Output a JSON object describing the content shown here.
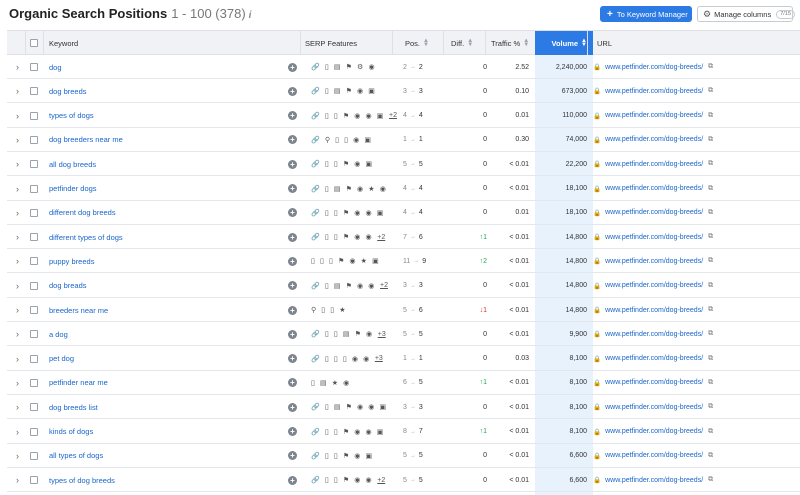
{
  "header": {
    "title": "Organic Search Positions",
    "range": "1 - 100 (378)",
    "info_icon": "i",
    "keyword_manager_label": "To Keyword Manager",
    "manage_columns_label": "Manage columns",
    "manage_columns_badge": "7/15"
  },
  "columns": {
    "keyword": "Keyword",
    "serp": "SERP Features",
    "pos": "Pos.",
    "diff": "Diff.",
    "traffic": "Traffic %",
    "volume": "Volume",
    "url": "URL"
  },
  "icons": {
    "add": "+",
    "chevron": "›",
    "arrow": "→",
    "lock": "🔒",
    "external": "⧉"
  },
  "rows": [
    {
      "keyword": "dog",
      "serp": "🔗 ▯ ▤ ⚑ ⚙ ◉",
      "more": "",
      "prev": "2",
      "pos": "2",
      "diff": "0",
      "diff_dir": "",
      "traffic": "2.52",
      "volume": "2,240,000",
      "url": "www.petfinder.com/dog-breeds/"
    },
    {
      "keyword": "dog breeds",
      "serp": "🔗 ▯ ▤ ⚑ ◉ ▣",
      "more": "",
      "prev": "3",
      "pos": "3",
      "diff": "0",
      "diff_dir": "",
      "traffic": "0.10",
      "volume": "673,000",
      "url": "www.petfinder.com/dog-breeds/"
    },
    {
      "keyword": "types of dogs",
      "serp": "🔗 ▯ ▯ ⚑ ◉ ◉ ▣",
      "more": "+2",
      "prev": "4",
      "pos": "4",
      "diff": "0",
      "diff_dir": "",
      "traffic": "0.01",
      "volume": "110,000",
      "url": "www.petfinder.com/dog-breeds/"
    },
    {
      "keyword": "dog breeders near me",
      "serp": "🔗 ⚲ ▯ ▯ ◉ ▣",
      "more": "",
      "prev": "1",
      "pos": "1",
      "diff": "0",
      "diff_dir": "",
      "traffic": "0.30",
      "volume": "74,000",
      "url": "www.petfinder.com/dog-breeds/"
    },
    {
      "keyword": "all dog breeds",
      "serp": "🔗 ▯ ▯ ⚑ ◉ ▣",
      "more": "",
      "prev": "5",
      "pos": "5",
      "diff": "0",
      "diff_dir": "",
      "traffic": "< 0.01",
      "volume": "22,200",
      "url": "www.petfinder.com/dog-breeds/"
    },
    {
      "keyword": "petfinder dogs",
      "serp": "🔗 ▯ ▤ ⚑ ◉ ★ ◉",
      "more": "",
      "prev": "4",
      "pos": "4",
      "diff": "0",
      "diff_dir": "",
      "traffic": "< 0.01",
      "volume": "18,100",
      "url": "www.petfinder.com/dog-breeds/"
    },
    {
      "keyword": "different dog breeds",
      "serp": "🔗 ▯ ▯ ⚑ ◉ ◉ ▣",
      "more": "",
      "prev": "4",
      "pos": "4",
      "diff": "0",
      "diff_dir": "",
      "traffic": "0.01",
      "volume": "18,100",
      "url": "www.petfinder.com/dog-breeds/"
    },
    {
      "keyword": "different types of dogs",
      "serp": "🔗 ▯ ▯ ⚑ ◉ ◉",
      "more": "+2",
      "prev": "7",
      "pos": "6",
      "diff": "↑1",
      "diff_dir": "up",
      "traffic": "< 0.01",
      "volume": "14,800",
      "url": "www.petfinder.com/dog-breeds/"
    },
    {
      "keyword": "puppy breeds",
      "serp": "▯ ▯ ▯ ⚑ ◉ ★ ▣",
      "more": "",
      "prev": "11",
      "pos": "9",
      "diff": "↑2",
      "diff_dir": "up",
      "traffic": "< 0.01",
      "volume": "14,800",
      "url": "www.petfinder.com/dog-breeds/"
    },
    {
      "keyword": "dog breads",
      "serp": "🔗 ▯ ▤ ⚑ ◉ ◉",
      "more": "+2",
      "prev": "3",
      "pos": "3",
      "diff": "0",
      "diff_dir": "",
      "traffic": "< 0.01",
      "volume": "14,800",
      "url": "www.petfinder.com/dog-breeds/"
    },
    {
      "keyword": "breeders near me",
      "serp": "⚲ ▯ ▯ ★",
      "more": "",
      "prev": "5",
      "pos": "6",
      "diff": "↓1",
      "diff_dir": "down",
      "traffic": "< 0.01",
      "volume": "14,800",
      "url": "www.petfinder.com/dog-breeds/"
    },
    {
      "keyword": "a dog",
      "serp": "🔗 ▯ ▯ ▤ ⚑ ◉",
      "more": "+3",
      "prev": "5",
      "pos": "5",
      "diff": "0",
      "diff_dir": "",
      "traffic": "< 0.01",
      "volume": "9,900",
      "url": "www.petfinder.com/dog-breeds/"
    },
    {
      "keyword": "pet dog",
      "serp": "🔗 ▯ ▯ ▯ ◉ ◉",
      "more": "+3",
      "prev": "1",
      "pos": "1",
      "diff": "0",
      "diff_dir": "",
      "traffic": "0.03",
      "volume": "8,100",
      "url": "www.petfinder.com/dog-breeds/"
    },
    {
      "keyword": "petfinder near me",
      "serp": "▯ ▤ ★ ◉",
      "more": "",
      "prev": "6",
      "pos": "5",
      "diff": "↑1",
      "diff_dir": "up",
      "traffic": "< 0.01",
      "volume": "8,100",
      "url": "www.petfinder.com/dog-breeds/"
    },
    {
      "keyword": "dog breeds list",
      "serp": "🔗 ▯ ▤ ⚑ ◉ ◉ ▣",
      "more": "",
      "prev": "3",
      "pos": "3",
      "diff": "0",
      "diff_dir": "",
      "traffic": "< 0.01",
      "volume": "8,100",
      "url": "www.petfinder.com/dog-breeds/"
    },
    {
      "keyword": "kinds of dogs",
      "serp": "🔗 ▯ ▯ ⚑ ◉ ◉ ▣",
      "more": "",
      "prev": "8",
      "pos": "7",
      "diff": "↑1",
      "diff_dir": "up",
      "traffic": "< 0.01",
      "volume": "8,100",
      "url": "www.petfinder.com/dog-breeds/"
    },
    {
      "keyword": "all types of dogs",
      "serp": "🔗 ▯ ▯ ⚑ ◉ ▣",
      "more": "",
      "prev": "5",
      "pos": "5",
      "diff": "0",
      "diff_dir": "",
      "traffic": "< 0.01",
      "volume": "6,600",
      "url": "www.petfinder.com/dog-breeds/"
    },
    {
      "keyword": "types of dog breeds",
      "serp": "🔗 ▯ ▯ ⚑ ◉ ◉",
      "more": "+2",
      "prev": "5",
      "pos": "5",
      "diff": "0",
      "diff_dir": "",
      "traffic": "< 0.01",
      "volume": "6,600",
      "url": "www.petfinder.com/dog-breeds/"
    }
  ]
}
